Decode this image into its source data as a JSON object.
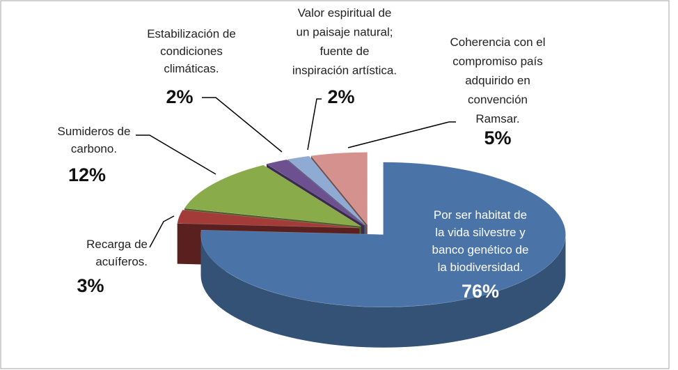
{
  "chart_data": {
    "type": "pie3d",
    "categories": [
      [
        "Por ser habitat de",
        "la vida silvestre y",
        "banco genético de",
        "la biodiversidad."
      ],
      [
        "Recarga de",
        "acuíferos."
      ],
      [
        "Sumideros de",
        "carbono."
      ],
      [
        "Estabilización de",
        "condiciones",
        "climáticas."
      ],
      [
        "Valor espiritual de",
        "un paisaje natural;",
        "fuente de",
        "inspiración artística."
      ],
      [
        "Coherencia con el",
        "compromiso país",
        "adquirido en",
        "convención",
        "Ramsar."
      ]
    ],
    "values": [
      76,
      3,
      12,
      2,
      2,
      5
    ],
    "value_labels": [
      "76%",
      "3%",
      "12%",
      "2%",
      "2%",
      "5%"
    ],
    "colors": [
      "#4a73a8",
      "#a33b38",
      "#8aab4a",
      "#6c5090",
      "#8fabd4",
      "#d4918e"
    ]
  }
}
